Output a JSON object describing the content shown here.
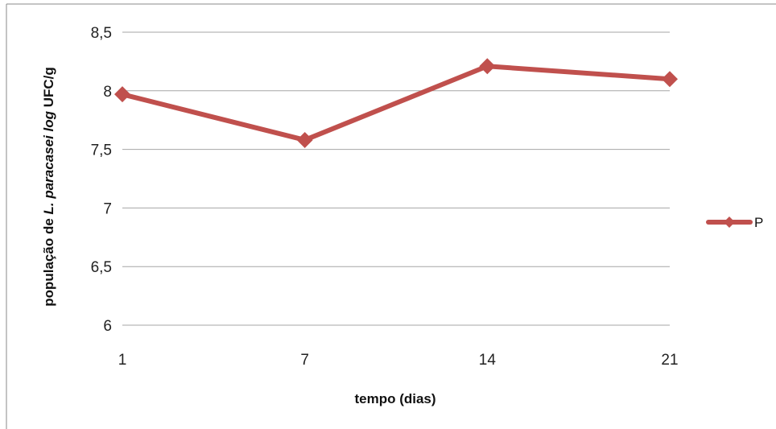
{
  "chart_data": {
    "type": "line",
    "categories": [
      "1",
      "7",
      "14",
      "21"
    ],
    "series": [
      {
        "name": "P",
        "values": [
          7.97,
          7.58,
          8.21,
          8.1
        ],
        "color": "#c0504d"
      }
    ],
    "xlabel": "tempo (dias)",
    "ylabel": {
      "prefix": "população de ",
      "italic": "L. paracasei log",
      "suffix": " UFC/g"
    },
    "ylim": [
      6,
      8.5
    ],
    "yticks": [
      6,
      6.5,
      7,
      7.5,
      8,
      8.5
    ],
    "ytick_labels": [
      "6",
      "6,5",
      "7",
      "7,5",
      "8",
      "8,5"
    ],
    "grid": true,
    "legend_position": "right",
    "colors": {
      "gridline": "#a6a6a6",
      "border": "#888888"
    }
  }
}
